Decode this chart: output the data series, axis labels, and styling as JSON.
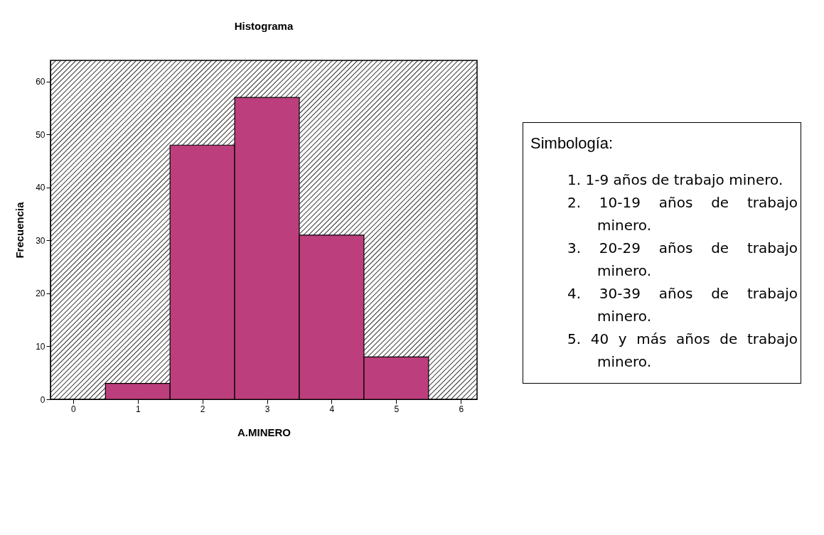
{
  "chart_data": {
    "type": "histogram",
    "title": "Histograma",
    "xlabel": "A.MINERO",
    "ylabel": "Frecuencia",
    "bins": [
      0.5,
      1.5,
      2.5,
      3.5,
      4.5,
      5.5
    ],
    "values": [
      3,
      48,
      57,
      31,
      8
    ],
    "color": "#bc3e7c",
    "xlim": [
      -0.35,
      6.25
    ],
    "xticks": [
      0,
      1,
      2,
      3,
      4,
      5,
      6
    ],
    "ylim": [
      0,
      64
    ],
    "yticks": [
      0,
      10,
      20,
      30,
      40,
      50,
      60
    ],
    "grid": false,
    "annotations": [
      "Simbología:",
      "1. 1-9 años de trabajo minero.",
      "2. 10-19 años de trabajo minero.",
      "3. 20-29 años de trabajo minero.",
      "4. 30-39 años de trabajo minero.",
      "5. 40 y más años de trabajo minero."
    ]
  }
}
